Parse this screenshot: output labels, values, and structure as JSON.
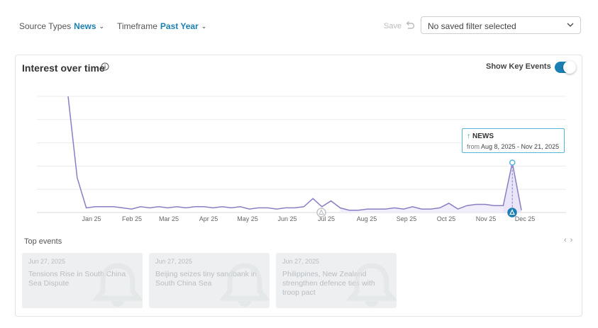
{
  "filters": {
    "source_types": {
      "label": "Source Types",
      "value": "News"
    },
    "timeframe": {
      "label": "Timeframe",
      "value": "Past Year"
    },
    "save_label": "Save",
    "saved_filter_placeholder": "No saved filter selected"
  },
  "card": {
    "title": "Interest over time",
    "toggle_label": "Show Key Events",
    "toggle_on": true
  },
  "tooltip": {
    "source": "NEWS",
    "from_label": "from",
    "range": "Aug 8, 2025 - Nov 21, 2025"
  },
  "chart_data": {
    "type": "line",
    "xlabels": [
      "Jan 25",
      "Feb 25",
      "Mar 25",
      "Apr 25",
      "May 25",
      "Jun 25",
      "Jul 25",
      "Aug 25",
      "Sep 25",
      "Oct 25",
      "Nov 25",
      "Dec 25"
    ],
    "series": [
      {
        "values": [
          100,
          30,
          4,
          5,
          5,
          5,
          4,
          3,
          5,
          4,
          5,
          4,
          5,
          4,
          5,
          5,
          4,
          5,
          4,
          5,
          3,
          4,
          4,
          3,
          4,
          4,
          5,
          12,
          5,
          10,
          4,
          2,
          2,
          3,
          3,
          3,
          4,
          3,
          5,
          3,
          3,
          4,
          8,
          3,
          6,
          7,
          7,
          6,
          6,
          43,
          2
        ],
        "color": "#8a7fc4"
      }
    ],
    "highlight_range": {
      "from_index": 48,
      "to_index": 50
    },
    "peak_index": 49,
    "key_event_x": [
      "Jul 25",
      "Dec 25"
    ],
    "grid": true,
    "legend": "none"
  },
  "top_events": {
    "title": "Top events",
    "prev_icon": "chevron-left-icon",
    "next_icon": "chevron-right-icon",
    "items": [
      {
        "date": "Jun 27, 2025",
        "headline": "Tensions Rise in South China Sea Dispute"
      },
      {
        "date": "Jun 27, 2025",
        "headline": "Beijing seizes tiny sandbank in South China Sea"
      },
      {
        "date": "Jun 27, 2025",
        "headline": "Philippines, New Zealand strengthen defence ties with troop pact"
      }
    ]
  },
  "colors": {
    "accent": "#1b7fb3",
    "line": "#8a7fc4",
    "area_fill": "#e8e2f7",
    "tooltip_border": "#57b6d8",
    "trend_up": "#1aa36b"
  }
}
